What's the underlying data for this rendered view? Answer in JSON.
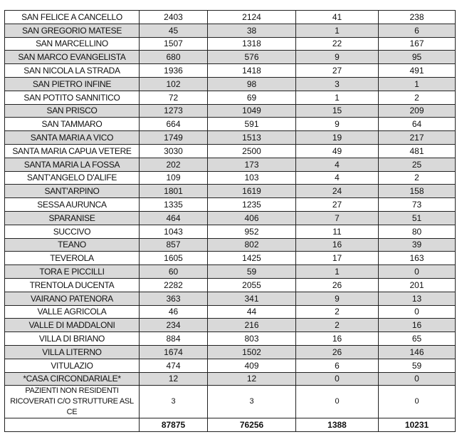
{
  "rows": [
    [
      "SAN FELICE A CANCELLO",
      "2403",
      "2124",
      "41",
      "238"
    ],
    [
      "SAN GREGORIO MATESE",
      "45",
      "38",
      "1",
      "6"
    ],
    [
      "SAN MARCELLINO",
      "1507",
      "1318",
      "22",
      "167"
    ],
    [
      "SAN MARCO EVANGELISTA",
      "680",
      "576",
      "9",
      "95"
    ],
    [
      "SAN NICOLA LA STRADA",
      "1936",
      "1418",
      "27",
      "491"
    ],
    [
      "SAN PIETRO INFINE",
      "102",
      "98",
      "3",
      "1"
    ],
    [
      "SAN POTITO SANNITICO",
      "72",
      "69",
      "1",
      "2"
    ],
    [
      "SAN PRISCO",
      "1273",
      "1049",
      "15",
      "209"
    ],
    [
      "SAN TAMMARO",
      "664",
      "591",
      "9",
      "64"
    ],
    [
      "SANTA MARIA A VICO",
      "1749",
      "1513",
      "19",
      "217"
    ],
    [
      "SANTA MARIA CAPUA VETERE",
      "3030",
      "2500",
      "49",
      "481"
    ],
    [
      "SANTA MARIA LA FOSSA",
      "202",
      "173",
      "4",
      "25"
    ],
    [
      "SANT'ANGELO D'ALIFE",
      "109",
      "103",
      "4",
      "2"
    ],
    [
      "SANT'ARPINO",
      "1801",
      "1619",
      "24",
      "158"
    ],
    [
      "SESSA AURUNCA",
      "1335",
      "1235",
      "27",
      "73"
    ],
    [
      "SPARANISE",
      "464",
      "406",
      "7",
      "51"
    ],
    [
      "SUCCIVO",
      "1043",
      "952",
      "11",
      "80"
    ],
    [
      "TEANO",
      "857",
      "802",
      "16",
      "39"
    ],
    [
      "TEVEROLA",
      "1605",
      "1425",
      "17",
      "163"
    ],
    [
      "TORA E PICCILLI",
      "60",
      "59",
      "1",
      "0"
    ],
    [
      "TRENTOLA DUCENTA",
      "2282",
      "2055",
      "26",
      "201"
    ],
    [
      "VAIRANO PATENORA",
      "363",
      "341",
      "9",
      "13"
    ],
    [
      "VALLE AGRICOLA",
      "46",
      "44",
      "2",
      "0"
    ],
    [
      "VALLE DI MADDALONI",
      "234",
      "216",
      "2",
      "16"
    ],
    [
      "VILLA DI BRIANO",
      "884",
      "803",
      "16",
      "65"
    ],
    [
      "VILLA LITERNO",
      "1674",
      "1502",
      "26",
      "146"
    ],
    [
      "VITULAZIO",
      "474",
      "409",
      "6",
      "59"
    ],
    [
      "*CASA CIRCONDARIALE*",
      "12",
      "12",
      "0",
      "0"
    ],
    [
      "PAZIENTI NON RESIDENTI RICOVERATI C/O STRUTTURE ASL CE",
      "3",
      "3",
      "0",
      "0"
    ]
  ],
  "totals": [
    "",
    "87875",
    "76256",
    "1388",
    "10231"
  ],
  "colors": {
    "alt_row": "#d9d9d9",
    "border": "#222222"
  }
}
